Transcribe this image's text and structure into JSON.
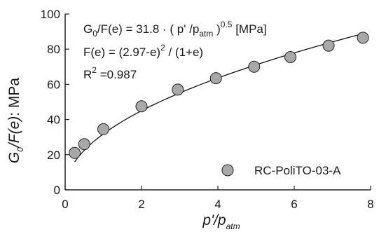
{
  "chart_data": {
    "type": "scatter",
    "xlabel": {
      "base": "p'/p",
      "subscript": "atm"
    },
    "ylabel": {
      "g": "G",
      "g_sub": "0",
      "italic_rest": "/F(e)",
      "plain_rest": ": MPa"
    },
    "xlim": [
      0,
      8
    ],
    "ylim": [
      0,
      100
    ],
    "x_ticks": [
      0,
      2,
      4,
      6,
      8
    ],
    "y_ticks": [
      0,
      20,
      40,
      60,
      80,
      100
    ],
    "grid": false,
    "legend_position": "bottom-right",
    "series": [
      {
        "name": "RC-PoliTO-03-A",
        "marker": "circle",
        "marker_color": "#a8a8a8",
        "edge_color": "#222222",
        "x": [
          0.25,
          0.5,
          1.0,
          2.0,
          2.95,
          3.95,
          4.95,
          5.9,
          6.9,
          7.8
        ],
        "y": [
          21,
          26,
          34.5,
          47.5,
          57,
          63.5,
          70,
          75.5,
          82,
          86.5
        ]
      }
    ],
    "fit_curve": {
      "coefficient": 31.8,
      "exponent": 0.5,
      "x_range": [
        0.25,
        7.8
      ],
      "color": "#111111"
    },
    "annotations": {
      "line1": {
        "g": "G",
        "g_sub": "0",
        "mid": "/F(e) = 31.8 · ( p' /p",
        "atm_sub": "atm",
        "close": " )",
        "exp": "0.5",
        "unit": " [MPa]"
      },
      "line2": {
        "pre": "F(e) = (2.97-e)",
        "sup": "2",
        "post": " / (1+e)"
      },
      "line3": {
        "pre": "R",
        "sup": "2",
        "post": " =0.987"
      }
    }
  }
}
